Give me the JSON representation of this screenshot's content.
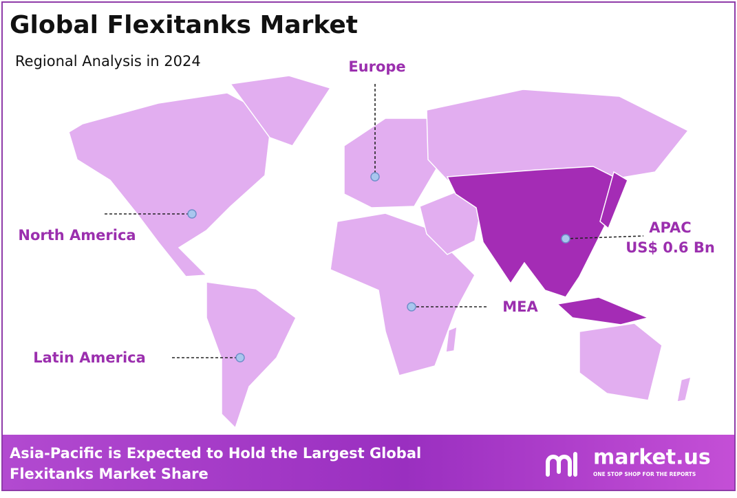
{
  "header": {
    "title": "Global Flexitanks Market",
    "subtitle": "Regional Analysis in 2024"
  },
  "regions": [
    {
      "name": "Europe"
    },
    {
      "name": "North America"
    },
    {
      "name": "APAC",
      "value": "US$ 0.6 Bn"
    },
    {
      "name": "MEA"
    },
    {
      "name": "Latin America"
    }
  ],
  "footer": {
    "text_lines": [
      "Asia-Pacific is Expected to Hold the Largest Global",
      "Flexitanks Market Share"
    ],
    "brand": "market.us",
    "tagline": "ONE STOP SHOP FOR THE REPORTS"
  }
}
